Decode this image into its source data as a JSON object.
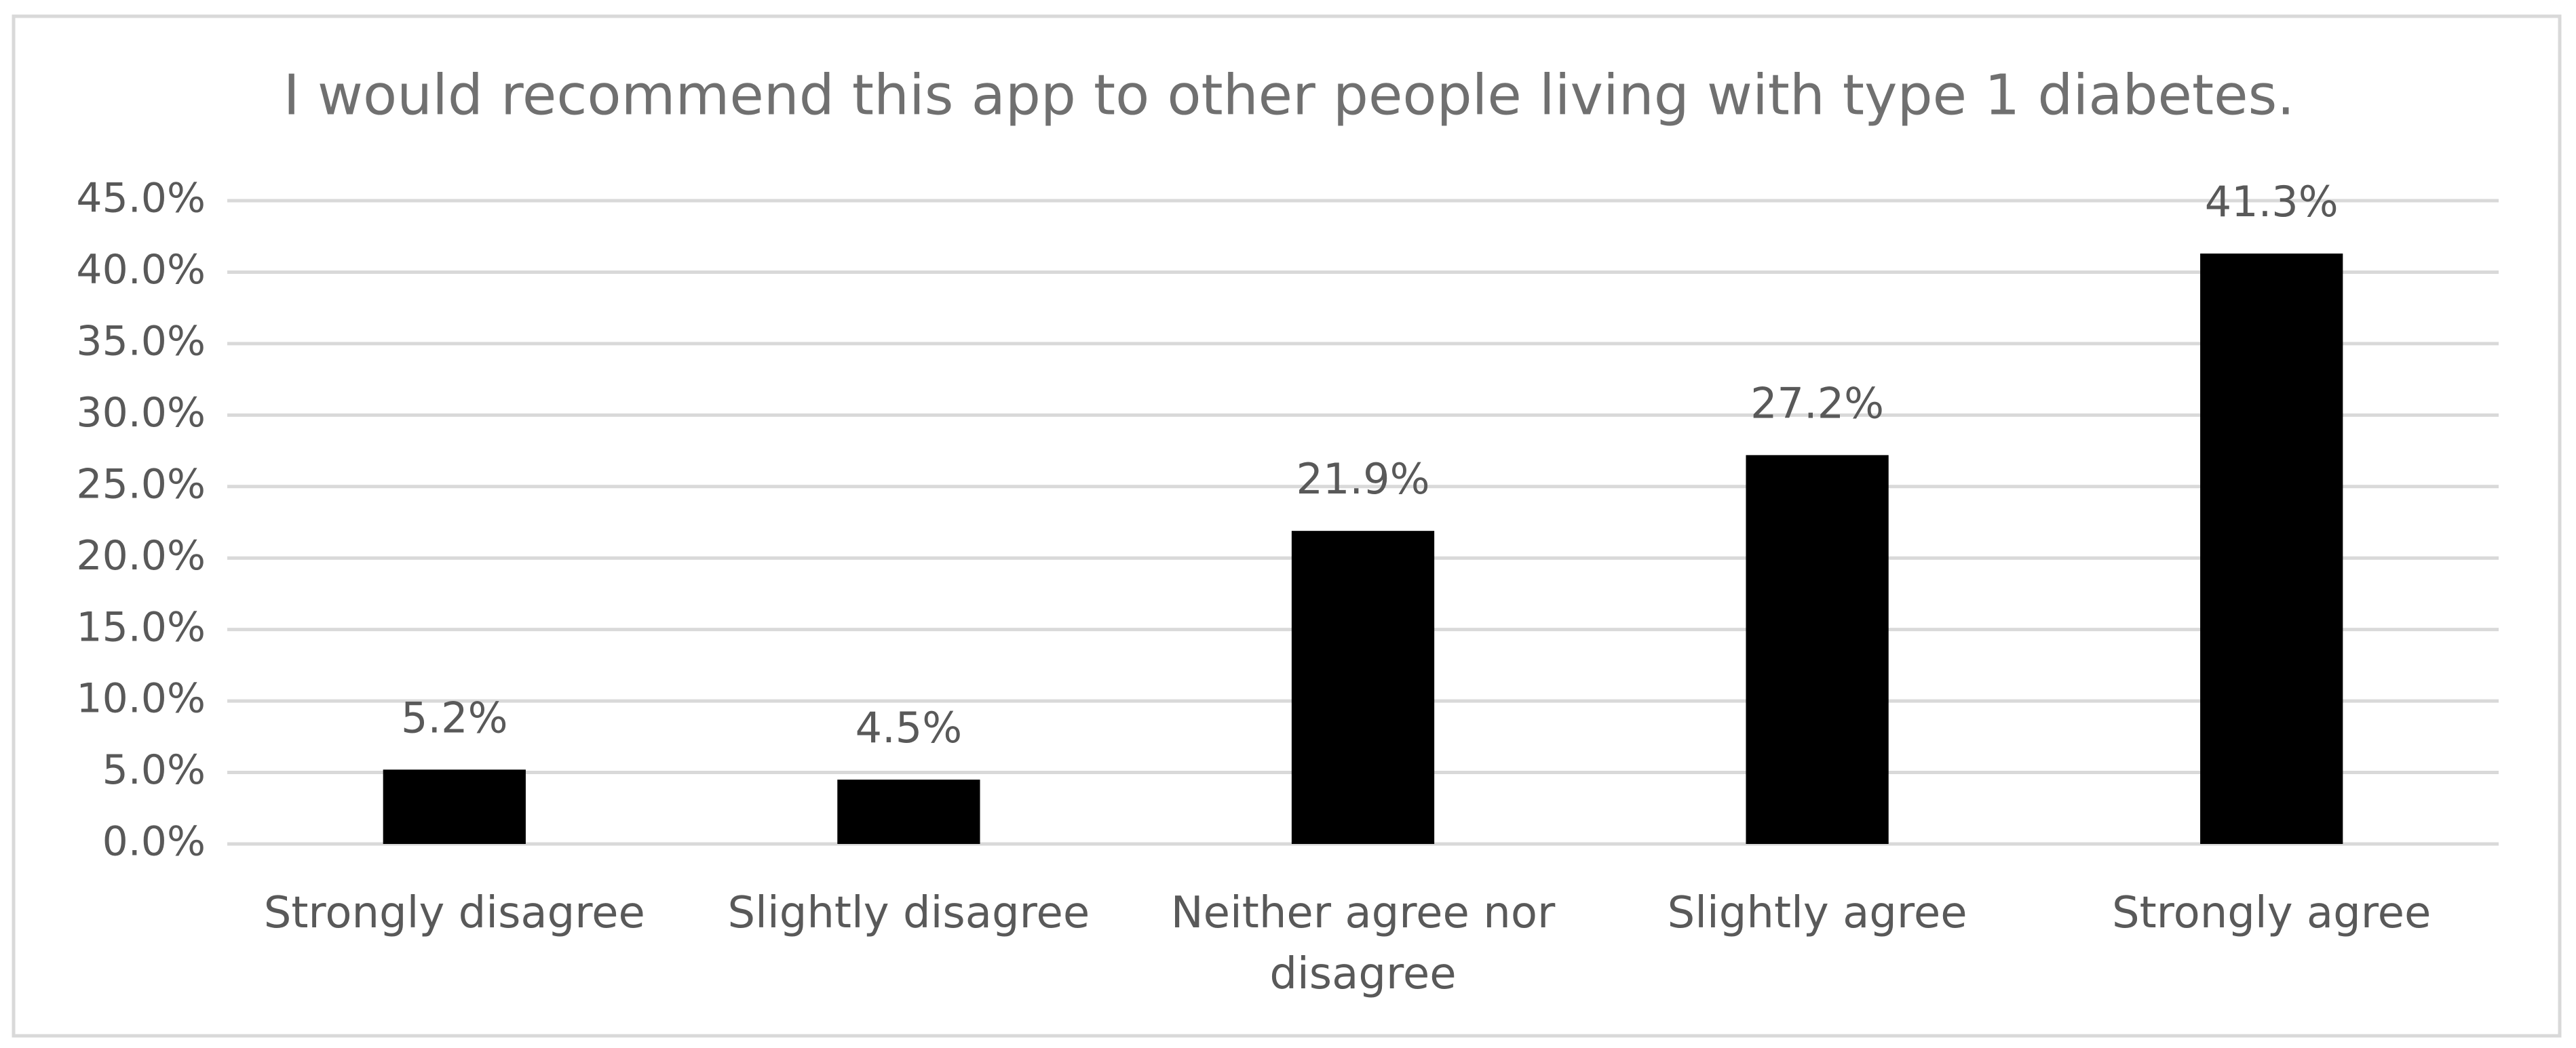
{
  "chart_data": {
    "type": "bar",
    "title": "I would recommend this app to other people living with type 1 diabetes.",
    "categories": [
      "Strongly disagree",
      "Slightly disagree",
      "Neither agree nor disagree",
      "Slightly agree",
      "Strongly agree"
    ],
    "values": [
      5.2,
      4.5,
      21.9,
      27.2,
      41.3
    ],
    "value_labels": [
      "5.2%",
      "4.5%",
      "21.9%",
      "27.2%",
      "41.3%"
    ],
    "color": "#000000",
    "ylim": [
      0,
      45
    ],
    "yticks": [
      {
        "value": 0,
        "label": "0.0%"
      },
      {
        "value": 5,
        "label": "5.0%"
      },
      {
        "value": 10,
        "label": "10.0%"
      },
      {
        "value": 15,
        "label": "15.0%"
      },
      {
        "value": 20,
        "label": "20.0%"
      },
      {
        "value": 25,
        "label": "25.0%"
      },
      {
        "value": 30,
        "label": "30.0%"
      },
      {
        "value": 35,
        "label": "35.0%"
      },
      {
        "value": 40,
        "label": "40.0%"
      },
      {
        "value": 45,
        "label": "45.0%"
      }
    ],
    "grid": true
  }
}
